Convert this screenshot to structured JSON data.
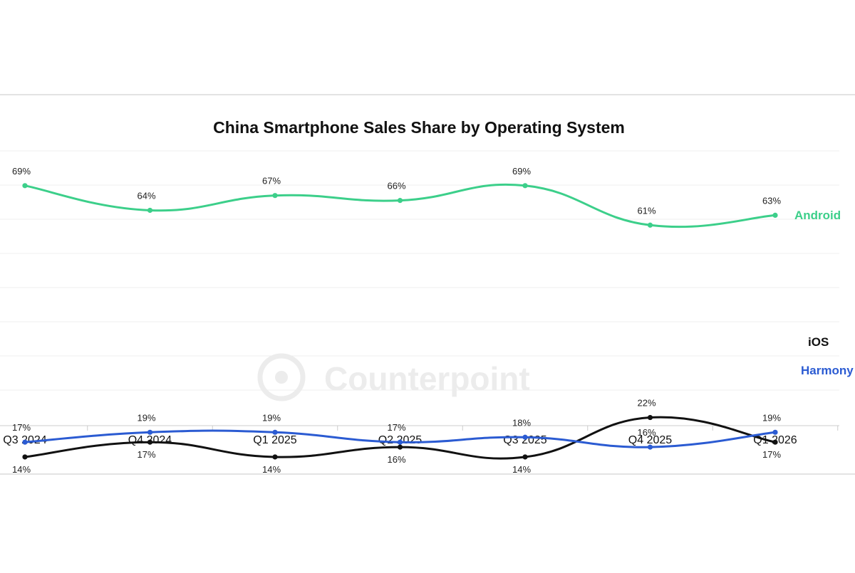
{
  "chart_data": {
    "type": "line",
    "title": "China Smartphone Sales Share by Operating System",
    "watermark": "Counterpoint",
    "categories": [
      "Q3 2024",
      "Q4 2024",
      "Q1 2025",
      "Q2 2025",
      "Q3 2025",
      "Q4 2025",
      "Q1 2026"
    ],
    "ylim": [
      0,
      80
    ],
    "grid": true,
    "legend": "right-end labels",
    "series": [
      {
        "name": "Android",
        "color": "#3ccf8a",
        "values": [
          69,
          64,
          67,
          66,
          69,
          61,
          63
        ],
        "labels": [
          "69%",
          "64%",
          "67%",
          "66%",
          "69%",
          "61%",
          "63%"
        ],
        "label_side": "above"
      },
      {
        "name": "Harmony",
        "color": "#2b5bd2",
        "values": [
          17,
          19,
          19,
          17,
          18,
          16,
          19
        ],
        "labels": [
          "17%",
          "19%",
          "19%",
          "17%",
          "18%",
          "16%",
          "19%"
        ],
        "label_side": "above"
      },
      {
        "name": "iOS",
        "color": "#111111",
        "values": [
          14,
          17,
          14,
          16,
          14,
          22,
          17
        ],
        "labels": [
          "14%",
          "17%",
          "14%",
          "16%",
          "14%",
          "22%",
          "17%"
        ],
        "label_side": "mixed"
      }
    ]
  }
}
